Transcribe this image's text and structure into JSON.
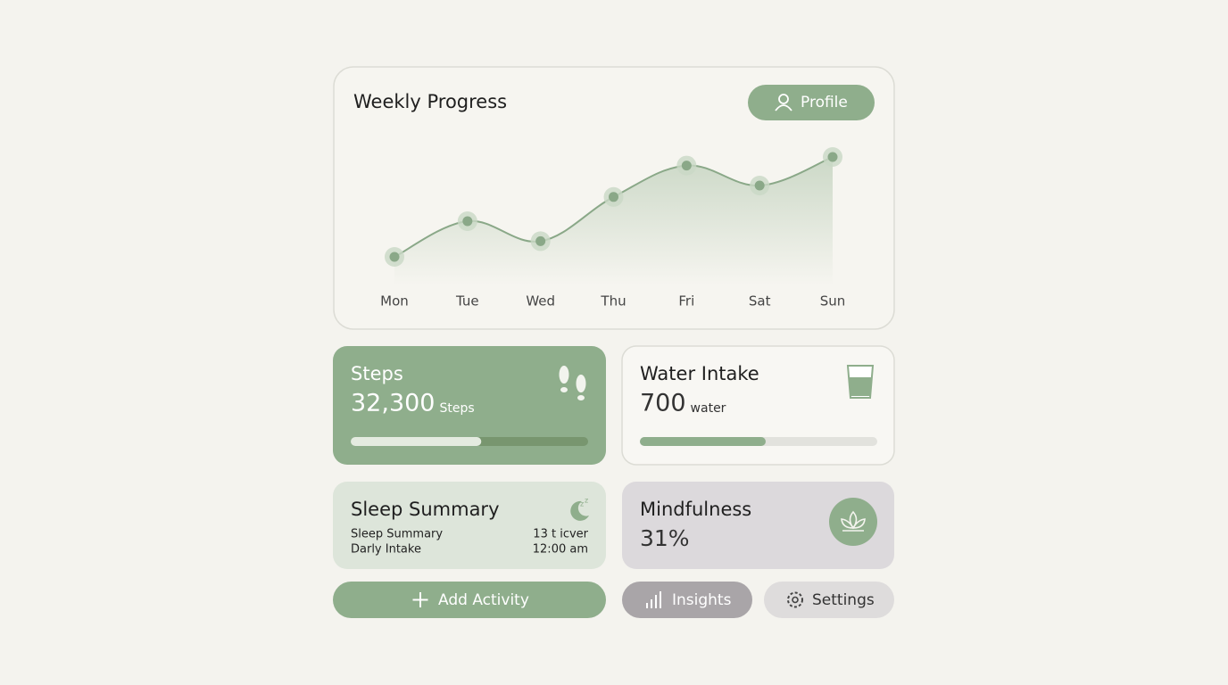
{
  "chart_data": {
    "type": "line",
    "title": "Weekly Progress",
    "categories": [
      "Mon",
      "Tue",
      "Wed",
      "Thu",
      "Fri",
      "Sat",
      "Sun"
    ],
    "values": [
      20,
      45,
      31,
      62,
      84,
      70,
      90
    ],
    "color": "#8aa888",
    "ylim": [
      0,
      100
    ]
  },
  "profile_button": "Profile",
  "steps": {
    "title": "Steps",
    "value": "32,300",
    "unit": "Steps",
    "progress": 55
  },
  "water": {
    "title": "Water Intake",
    "value": "700",
    "unit": "water",
    "progress": 53
  },
  "sleep": {
    "title": "Sleep Summary",
    "rows": [
      [
        "Sleep Summary",
        "13 t icver"
      ],
      [
        "Darly Intake",
        "12:00 am"
      ]
    ]
  },
  "mindfulness": {
    "title": "Mindfulness",
    "value": "31%"
  },
  "buttons": {
    "add": "Add Activity",
    "insights": "Insights",
    "settings": "Settings"
  }
}
